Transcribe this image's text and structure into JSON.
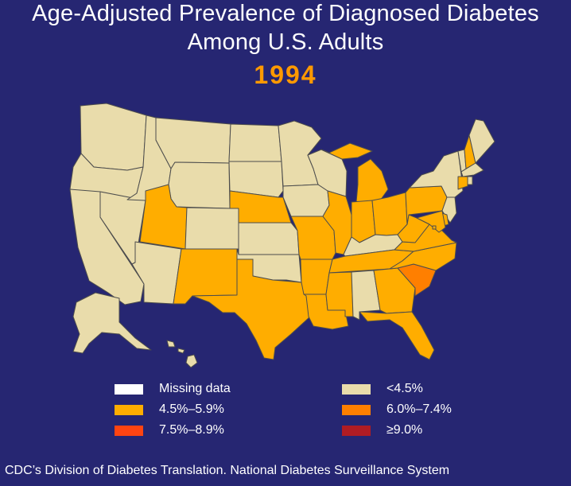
{
  "title_line1": "Age-Adjusted Prevalence of Diagnosed Diabetes",
  "title_line2": "Among U.S. Adults",
  "year": "1994",
  "colors": {
    "background": "#262672",
    "year": "#ff9900",
    "border": "#4d4d4d",
    "missing": "#ffffff",
    "lt45": "#e9dcab",
    "r45_59": "#ffad00",
    "r60_74": "#ff7f00",
    "r75_89": "#ff4411",
    "ge90": "#b01c23"
  },
  "legend": [
    {
      "key": "missing",
      "label": "Missing data"
    },
    {
      "key": "lt45",
      "label": "<4.5%"
    },
    {
      "key": "r45_59",
      "label": "4.5%–5.9%"
    },
    {
      "key": "r60_74",
      "label": "6.0%–7.4%"
    },
    {
      "key": "r75_89",
      "label": "7.5%–8.9%"
    },
    {
      "key": "ge90",
      "label": "≥9.0%"
    }
  ],
  "states": {
    "WA": "lt45",
    "OR": "lt45",
    "CA": "lt45",
    "NV": "lt45",
    "ID": "lt45",
    "MT": "lt45",
    "WY": "lt45",
    "UT": "r45_59",
    "CO": "lt45",
    "AZ": "lt45",
    "NM": "r45_59",
    "ND": "lt45",
    "SD": "lt45",
    "NE": "r45_59",
    "KS": "lt45",
    "OK": "lt45",
    "TX": "r45_59",
    "MN": "lt45",
    "IA": "lt45",
    "MO": "r45_59",
    "AR": "r45_59",
    "LA": "r45_59",
    "WI": "lt45",
    "IL": "r45_59",
    "MI": "r45_59",
    "IN": "r45_59",
    "OH": "r45_59",
    "KY": "lt45",
    "TN": "r45_59",
    "MS": "r45_59",
    "AL": "lt45",
    "GA": "r45_59",
    "FL": "r45_59",
    "SC": "r60_74",
    "NC": "r45_59",
    "VA": "r45_59",
    "WV": "r45_59",
    "PA": "r45_59",
    "NY": "lt45",
    "ME": "lt45",
    "NH": "r45_59",
    "VT": "lt45",
    "MA": "lt45",
    "RI": "lt45",
    "CT": "r45_59",
    "NJ": "lt45",
    "DE": "r45_59",
    "MD": "r45_59",
    "DC": "r45_59",
    "AK": "lt45",
    "HI": "lt45"
  },
  "footer": "CDC’s Division of Diabetes Translation.  National Diabetes Surveillance System"
}
